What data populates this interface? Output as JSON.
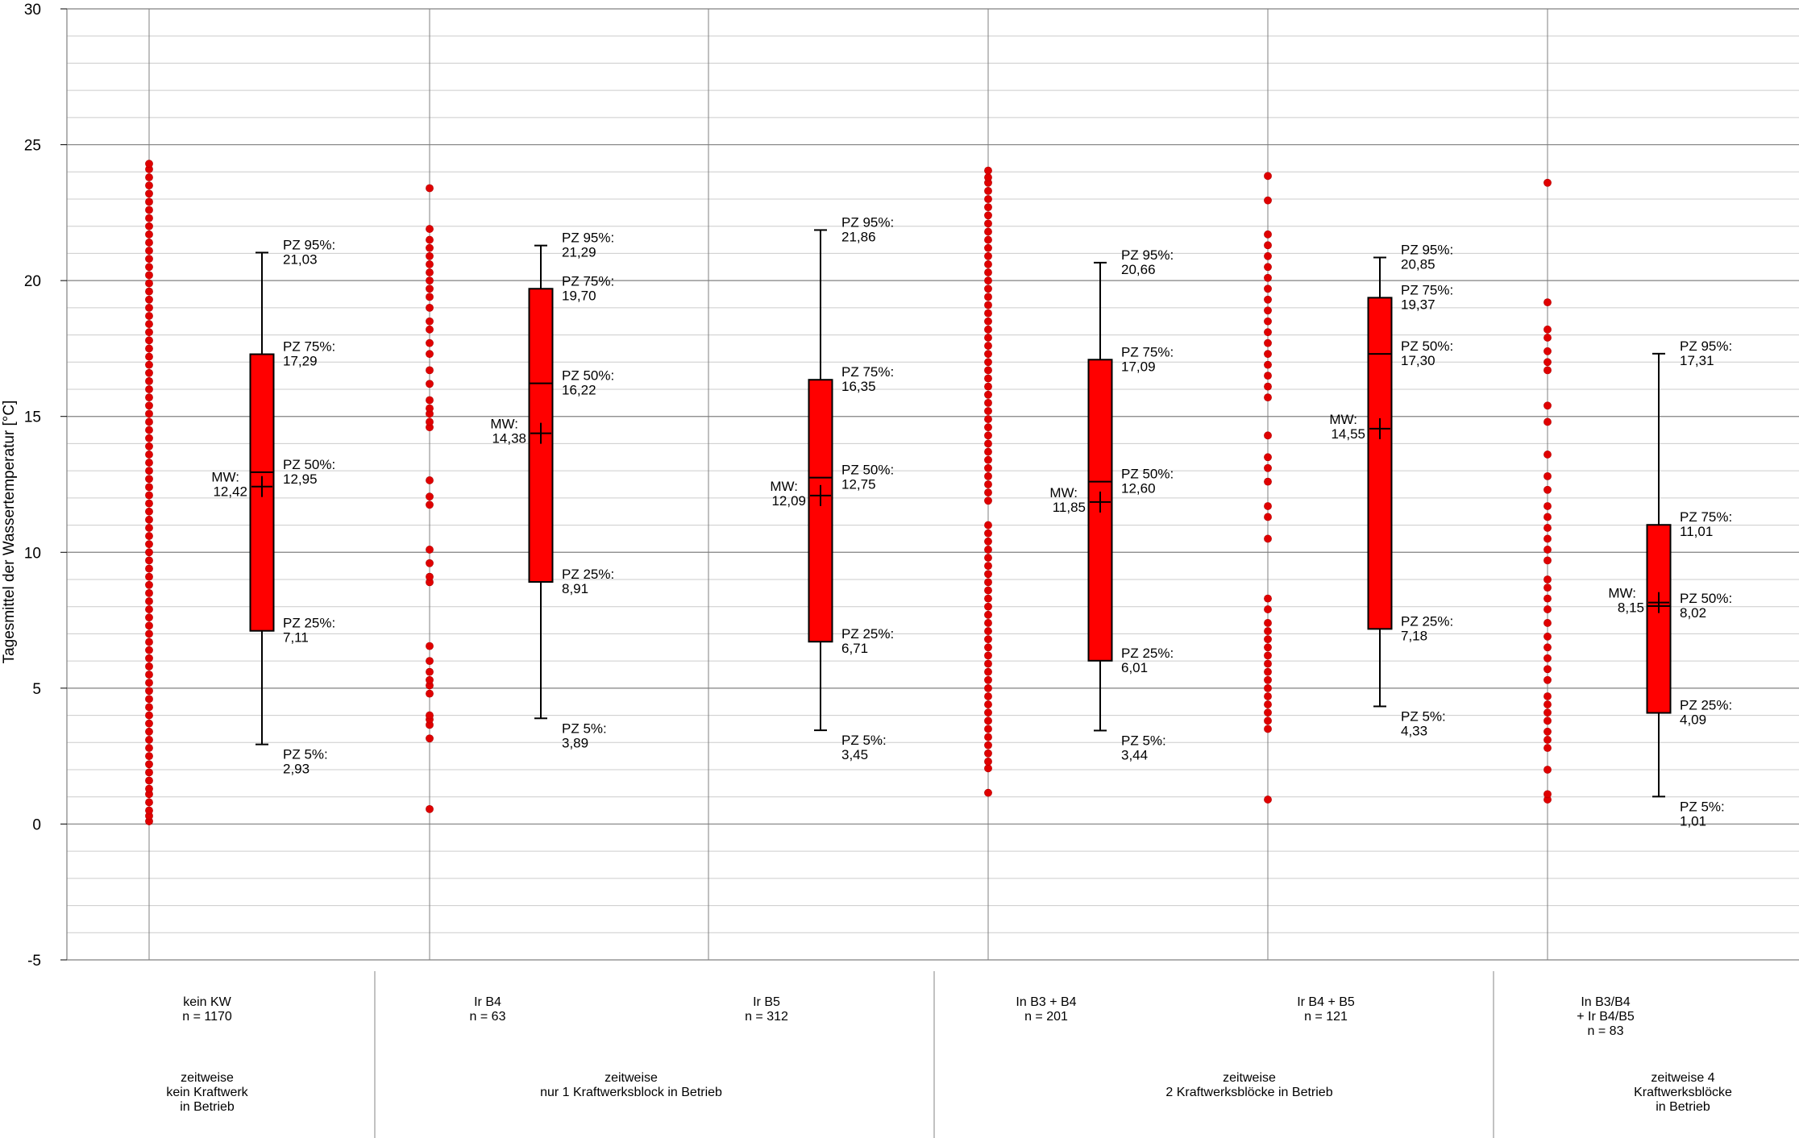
{
  "chart_data": {
    "type": "box",
    "ylabel": "Tagesmittel der Wassertemperatur [°C]",
    "ylim": [
      -5,
      30
    ],
    "y_ticks": [
      -5,
      0,
      5,
      10,
      15,
      20,
      25,
      30
    ],
    "y_tick_labels": [
      "-5",
      "0",
      "5",
      "10",
      "15",
      "20",
      "25",
      "30"
    ],
    "grid": true,
    "colors": {
      "box": "#ff0000",
      "points": "#e00000",
      "grid_major": "#808080",
      "grid_minor": "#cccccc"
    },
    "series": [
      {
        "label_lines": [
          "kein KW",
          "n = 1170"
        ],
        "stats": {
          "p95": 21.03,
          "p75": 17.29,
          "p50": 12.95,
          "p25": 7.11,
          "p5": 2.93,
          "mean": 12.42
        },
        "labels": {
          "p95": [
            "PZ 95%:",
            "21,03"
          ],
          "p75": [
            "PZ 75%:",
            "17,29"
          ],
          "p50": [
            "PZ 50%:",
            "12,95"
          ],
          "p25": [
            "PZ 25%:",
            "7,11"
          ],
          "p5": [
            "PZ 5%:",
            "2,93"
          ],
          "mean": [
            "MW:",
            "12,42"
          ]
        },
        "points": [
          0.1,
          0.3,
          0.5,
          0.8,
          1.1,
          1.3,
          1.6,
          1.9,
          2.2,
          2.5,
          2.8,
          3.1,
          3.4,
          3.7,
          4.0,
          4.3,
          4.6,
          4.9,
          5.2,
          5.5,
          5.8,
          6.1,
          6.4,
          6.7,
          7.0,
          7.3,
          7.6,
          7.9,
          8.2,
          8.5,
          8.8,
          9.1,
          9.4,
          9.7,
          10.0,
          10.3,
          10.6,
          10.9,
          11.2,
          11.5,
          11.8,
          12.1,
          12.4,
          12.7,
          13.0,
          13.3,
          13.6,
          13.9,
          14.2,
          14.5,
          14.8,
          15.1,
          15.4,
          15.7,
          16.0,
          16.3,
          16.6,
          16.9,
          17.2,
          17.5,
          17.8,
          18.1,
          18.4,
          18.7,
          19.0,
          19.3,
          19.6,
          19.9,
          20.2,
          20.5,
          20.8,
          21.1,
          21.4,
          21.7,
          22.0,
          22.3,
          22.6,
          22.9,
          23.2,
          23.5,
          23.8,
          24.1,
          24.3
        ]
      },
      {
        "label_lines": [
          "Ir B4",
          "n = 63"
        ],
        "stats": {
          "p95": 21.29,
          "p75": 19.7,
          "p50": 16.22,
          "p25": 8.91,
          "p5": 3.89,
          "mean": 14.38
        },
        "labels": {
          "p95": [
            "PZ 95%:",
            "21,29"
          ],
          "p75": [
            "PZ 75%:",
            "19,70"
          ],
          "p50": [
            "PZ 50%:",
            "16,22"
          ],
          "p25": [
            "PZ 25%:",
            "8,91"
          ],
          "p5": [
            "PZ 5%:",
            "3,89"
          ],
          "mean": [
            "MW:",
            "14,38"
          ]
        },
        "points": [
          0.55,
          3.15,
          3.65,
          3.85,
          4.0,
          4.8,
          5.1,
          5.3,
          5.6,
          6.0,
          6.55,
          8.9,
          9.1,
          9.6,
          10.1,
          11.75,
          12.05,
          12.65,
          14.6,
          14.8,
          15.1,
          15.3,
          15.6,
          16.2,
          16.7,
          17.3,
          17.7,
          18.2,
          18.5,
          19.0,
          19.4,
          19.7,
          20.0,
          20.3,
          20.6,
          20.9,
          21.2,
          21.5,
          21.9,
          23.4
        ]
      },
      {
        "label_lines": [
          "Ir B5",
          "n = 312"
        ],
        "stats": {
          "p95": 21.86,
          "p75": 16.35,
          "p50": 12.75,
          "p25": 6.71,
          "p5": 3.45,
          "mean": 12.09
        },
        "labels": {
          "p95": [
            "PZ 95%:",
            "21,86"
          ],
          "p75": [
            "PZ 75%:",
            "16,35"
          ],
          "p50": [
            "PZ 50%:",
            "12,75"
          ],
          "p25": [
            "PZ 25%:",
            "6,71"
          ],
          "p5": [
            "PZ 5%:",
            "3,45"
          ],
          "mean": [
            "MW:",
            "12,09"
          ]
        },
        "points": []
      },
      {
        "label_lines": [
          "In B3 + B4",
          "n = 201"
        ],
        "stats": {
          "p95": 20.66,
          "p75": 17.09,
          "p50": 12.6,
          "p25": 6.01,
          "p5": 3.44,
          "mean": 11.85
        },
        "labels": {
          "p95": [
            "PZ 95%:",
            "20,66"
          ],
          "p75": [
            "PZ 75%:",
            "17,09"
          ],
          "p50": [
            "PZ 50%:",
            "12,60"
          ],
          "p25": [
            "PZ 25%:",
            "6,01"
          ],
          "p5": [
            "PZ 5%:",
            "3,44"
          ],
          "mean": [
            "MW:",
            "11,85"
          ]
        },
        "points": [
          1.15,
          2.05,
          2.3,
          2.6,
          2.9,
          3.2,
          3.5,
          3.8,
          4.1,
          4.4,
          4.7,
          5.0,
          5.3,
          5.6,
          5.9,
          6.2,
          6.5,
          6.8,
          7.1,
          7.4,
          7.7,
          8.0,
          8.3,
          8.6,
          8.9,
          9.2,
          9.5,
          9.8,
          10.1,
          10.4,
          10.7,
          11.0,
          11.9,
          12.2,
          12.5,
          12.8,
          13.1,
          13.4,
          13.7,
          14.0,
          14.3,
          14.6,
          14.9,
          15.2,
          15.5,
          15.8,
          16.1,
          16.4,
          16.7,
          17.0,
          17.3,
          17.6,
          17.9,
          18.2,
          18.5,
          18.8,
          19.1,
          19.4,
          19.7,
          20.0,
          20.3,
          20.6,
          20.9,
          21.2,
          21.5,
          21.8,
          22.1,
          22.4,
          22.7,
          23.0,
          23.3,
          23.6,
          23.8,
          24.05
        ]
      },
      {
        "label_lines": [
          "Ir B4 + B5",
          "n = 121"
        ],
        "stats": {
          "p95": 20.85,
          "p75": 19.37,
          "p50": 17.3,
          "p25": 7.18,
          "p5": 4.33,
          "mean": 14.55
        },
        "labels": {
          "p95": [
            "PZ 95%:",
            "20,85"
          ],
          "p75": [
            "PZ 75%:",
            "19,37"
          ],
          "p50": [
            "PZ 50%:",
            "17,30"
          ],
          "p25": [
            "PZ 25%:",
            "7,18"
          ],
          "p5": [
            "PZ 5%:",
            "4,33"
          ],
          "mean": [
            "MW:",
            "14,55"
          ]
        },
        "points": [
          0.9,
          3.5,
          3.8,
          4.1,
          4.4,
          4.7,
          5.0,
          5.3,
          5.6,
          5.9,
          6.2,
          6.5,
          6.8,
          7.1,
          7.4,
          7.9,
          8.3,
          10.5,
          11.3,
          11.7,
          12.6,
          13.1,
          13.5,
          14.3,
          15.7,
          16.1,
          16.5,
          16.9,
          17.3,
          17.7,
          18.1,
          18.5,
          18.9,
          19.3,
          19.7,
          20.1,
          20.5,
          20.9,
          21.3,
          21.7,
          22.95,
          23.85
        ]
      },
      {
        "label_lines": [
          "In B3/B4",
          "+ Ir B4/B5",
          "n = 83"
        ],
        "stats": {
          "p95": 17.31,
          "p75": 11.01,
          "p50": 8.02,
          "p25": 4.09,
          "p5": 1.01,
          "mean": 8.15
        },
        "labels": {
          "p95": [
            "PZ 95%:",
            "17,31"
          ],
          "p75": [
            "PZ 75%:",
            "11,01"
          ],
          "p50": [
            "PZ 50%:",
            "8,02"
          ],
          "p25": [
            "PZ 25%:",
            "4,09"
          ],
          "p5": [
            "PZ 5%:",
            "1,01"
          ],
          "mean": [
            "MW:",
            "8,15"
          ]
        },
        "points": [
          0.9,
          1.1,
          2.0,
          2.8,
          3.1,
          3.4,
          3.8,
          4.1,
          4.4,
          4.7,
          5.3,
          5.7,
          6.1,
          6.5,
          6.9,
          7.4,
          7.9,
          8.3,
          8.7,
          9.0,
          9.7,
          10.1,
          10.5,
          10.9,
          11.3,
          11.7,
          12.3,
          12.8,
          13.6,
          14.8,
          15.4,
          16.7,
          17.0,
          17.4,
          17.9,
          18.2,
          19.2,
          23.6
        ]
      }
    ],
    "groups": [
      {
        "label_lines": [
          "zeitweise",
          "kein Kraftwerk",
          "in Betrieb"
        ]
      },
      {
        "label_lines": [
          "zeitweise",
          "nur 1 Kraftwerksblock in Betrieb"
        ]
      },
      {
        "label_lines": [
          "zeitweise",
          "2 Kraftwerksblöcke in Betrieb"
        ]
      },
      {
        "label_lines": [
          "zeitweise 4",
          "Kraftwerksblöcke",
          "in Betrieb"
        ]
      }
    ]
  }
}
